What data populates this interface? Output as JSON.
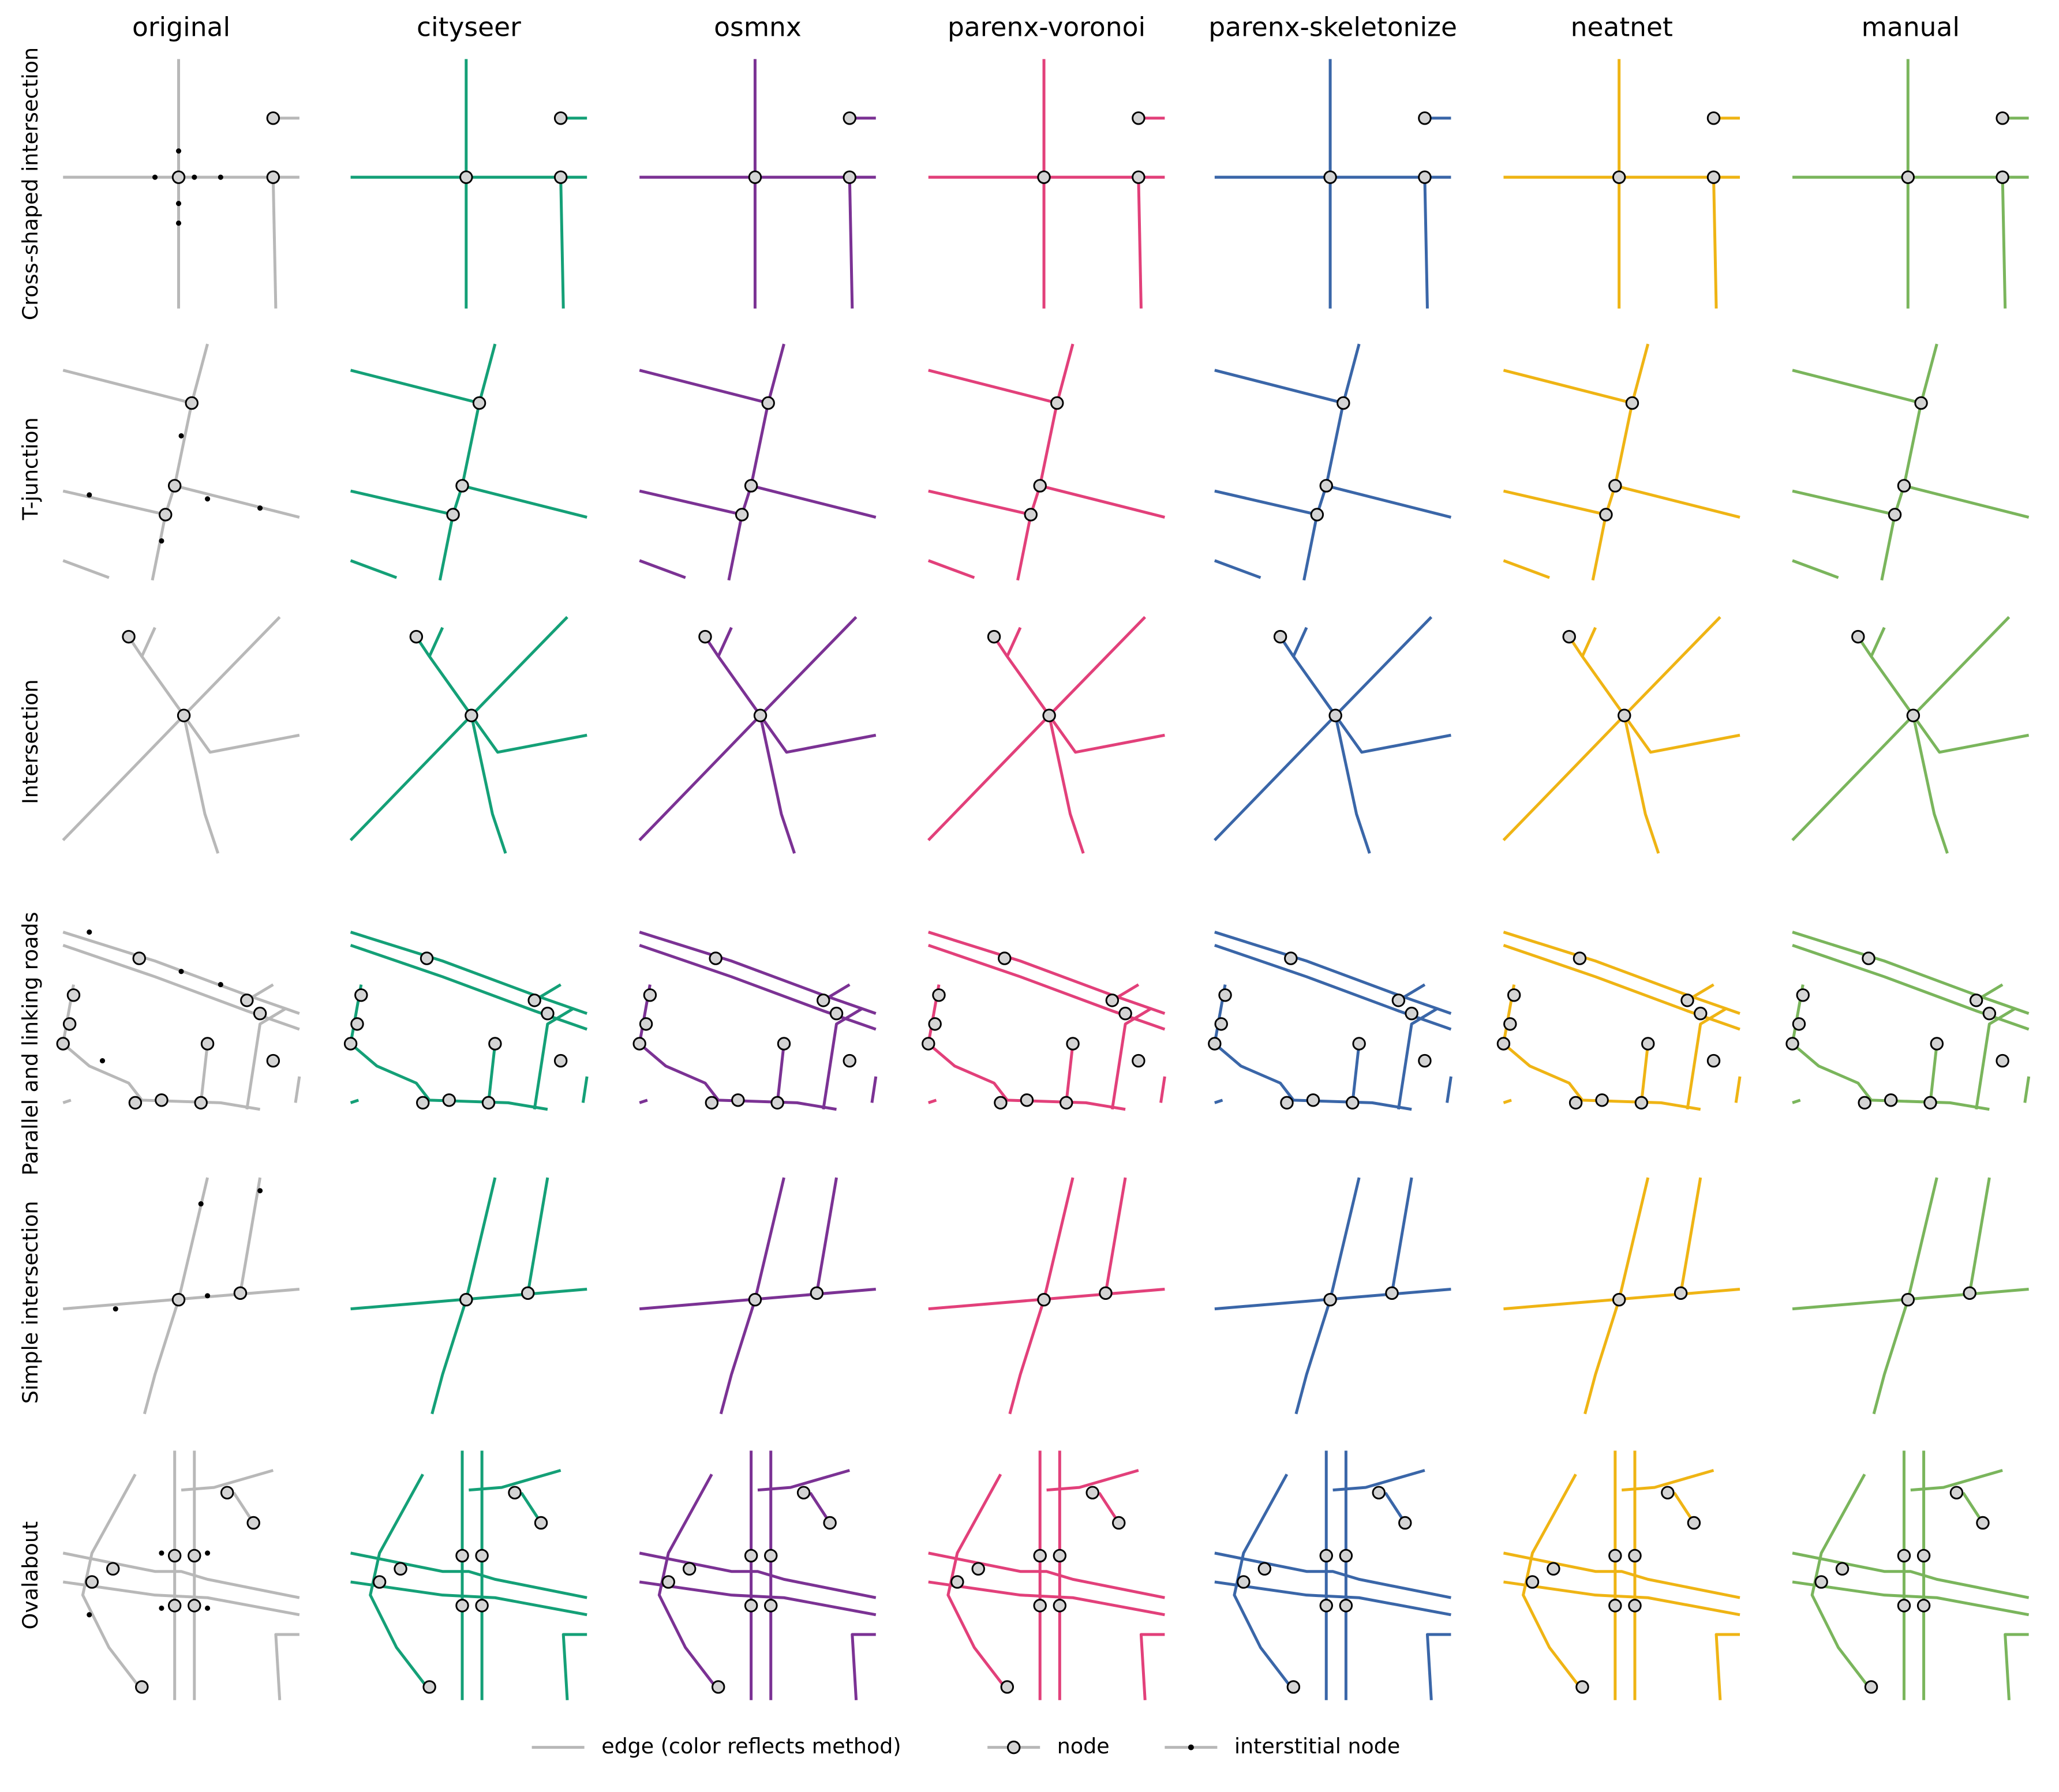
{
  "columns": [
    "original",
    "cityseer",
    "osmnx",
    "parenx-voronoi",
    "parenx-skeletonize",
    "neatnet",
    "manual"
  ],
  "rows": [
    "Cross-shaped intersection",
    "T-junction",
    "Intersection",
    "Parallel and linking roads",
    "Simple intersection",
    "Ovalabout"
  ],
  "legend": [
    "edge (color reflects method)",
    "node",
    "interstitial node"
  ]
}
